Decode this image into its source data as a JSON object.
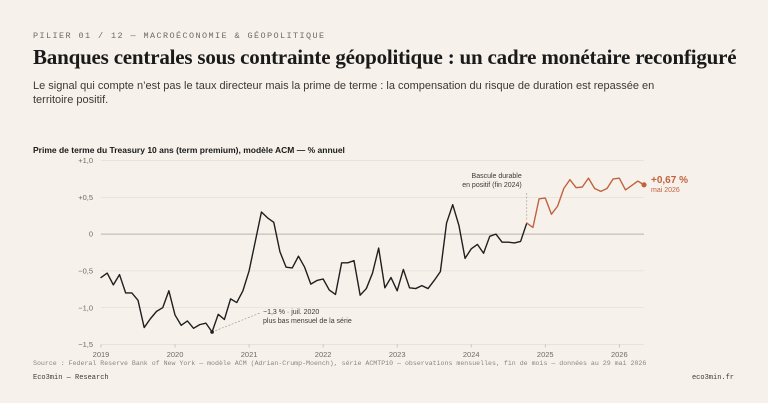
{
  "header": {
    "kicker": "PILIER 01 / 12 — MACROÉCONOMIE & GÉOPOLITIQUE",
    "title": "Banques centrales sous contrainte géopolitique : un cadre monétaire reconfiguré",
    "subtitle": "Le signal qui compte n’est pas le taux directeur mais la prime de terme : la compensation du risque de duration est repassée en territoire positif."
  },
  "footer": {
    "source": "Source : Federal Reserve Bank of New York — modèle ACM (Adrian-Crump-Moench), série ACMTP10 — observations mensuelles, fin de mois — données au 29 mai 2026",
    "brand": "Eco3min — Research",
    "site": "eco3min.fr"
  },
  "colors": {
    "background": "#f6f2eb",
    "historical_line": "#1f1f1f",
    "recent_line": "#c0623f",
    "grid": "#e3ddd3",
    "zero_line": "#b9b3a9"
  },
  "chart_data": {
    "type": "line",
    "title": "Prime de terme du Treasury 10 ans (term premium), modèle ACM — % annuel",
    "ylim": [
      -1.5,
      1.0
    ],
    "xlim": [
      "2019-01",
      "2026-05"
    ],
    "y_ticks": [
      1.0,
      0.5,
      0,
      -0.5,
      -1.0,
      -1.5
    ],
    "y_tick_labels": [
      "+1,0",
      "+0,5",
      "0",
      "−0,5",
      "−1,0",
      "−1,5"
    ],
    "x_tick_labels": [
      "2019",
      "2020",
      "2021",
      "2022",
      "2023",
      "2024",
      "2025",
      "2026"
    ],
    "grid": true,
    "split_date": "2024-10",
    "series": [
      {
        "segment": "historique",
        "color": "#1f1f1f",
        "points": [
          [
            "2019-01",
            -0.59
          ],
          [
            "2019-02",
            -0.53
          ],
          [
            "2019-03",
            -0.69
          ],
          [
            "2019-04",
            -0.55
          ],
          [
            "2019-05",
            -0.8
          ],
          [
            "2019-06",
            -0.8
          ],
          [
            "2019-07",
            -0.9
          ],
          [
            "2019-08",
            -1.27
          ],
          [
            "2019-09",
            -1.15
          ],
          [
            "2019-10",
            -1.05
          ],
          [
            "2019-11",
            -1.0
          ],
          [
            "2019-12",
            -0.77
          ],
          [
            "2020-01",
            -1.1
          ],
          [
            "2020-02",
            -1.24
          ],
          [
            "2020-03",
            -1.18
          ],
          [
            "2020-04",
            -1.28
          ],
          [
            "2020-05",
            -1.23
          ],
          [
            "2020-06",
            -1.21
          ],
          [
            "2020-07",
            -1.33
          ],
          [
            "2020-08",
            -1.09
          ],
          [
            "2020-09",
            -1.16
          ],
          [
            "2020-10",
            -0.88
          ],
          [
            "2020-11",
            -0.93
          ],
          [
            "2020-12",
            -0.77
          ],
          [
            "2021-01",
            -0.5
          ],
          [
            "2021-02",
            -0.1
          ],
          [
            "2021-03",
            0.3
          ],
          [
            "2021-04",
            0.22
          ],
          [
            "2021-05",
            0.16
          ],
          [
            "2021-06",
            -0.24
          ],
          [
            "2021-07",
            -0.45
          ],
          [
            "2021-08",
            -0.46
          ],
          [
            "2021-09",
            -0.3
          ],
          [
            "2021-10",
            -0.45
          ],
          [
            "2021-11",
            -0.68
          ],
          [
            "2021-12",
            -0.63
          ],
          [
            "2022-01",
            -0.61
          ],
          [
            "2022-02",
            -0.76
          ],
          [
            "2022-03",
            -0.82
          ],
          [
            "2022-04",
            -0.39
          ],
          [
            "2022-05",
            -0.39
          ],
          [
            "2022-06",
            -0.36
          ],
          [
            "2022-07",
            -0.83
          ],
          [
            "2022-08",
            -0.74
          ],
          [
            "2022-09",
            -0.53
          ],
          [
            "2022-10",
            -0.19
          ],
          [
            "2022-11",
            -0.73
          ],
          [
            "2022-12",
            -0.59
          ],
          [
            "2023-01",
            -0.77
          ],
          [
            "2023-02",
            -0.48
          ],
          [
            "2023-03",
            -0.73
          ],
          [
            "2023-04",
            -0.74
          ],
          [
            "2023-05",
            -0.7
          ],
          [
            "2023-06",
            -0.74
          ],
          [
            "2023-07",
            -0.63
          ],
          [
            "2023-08",
            -0.51
          ],
          [
            "2023-09",
            0.15
          ],
          [
            "2023-10",
            0.4
          ],
          [
            "2023-11",
            0.12
          ],
          [
            "2023-12",
            -0.33
          ],
          [
            "2024-01",
            -0.2
          ],
          [
            "2024-02",
            -0.14
          ],
          [
            "2024-03",
            -0.26
          ],
          [
            "2024-04",
            -0.03
          ],
          [
            "2024-05",
            0.0
          ],
          [
            "2024-06",
            -0.11
          ],
          [
            "2024-07",
            -0.11
          ],
          [
            "2024-08",
            -0.12
          ],
          [
            "2024-09",
            -0.1
          ],
          [
            "2024-10",
            0.15
          ]
        ]
      },
      {
        "segment": "récent",
        "color": "#c0623f",
        "points": [
          [
            "2024-10",
            0.15
          ],
          [
            "2024-11",
            0.09
          ],
          [
            "2024-12",
            0.48
          ],
          [
            "2025-01",
            0.49
          ],
          [
            "2025-02",
            0.27
          ],
          [
            "2025-03",
            0.38
          ],
          [
            "2025-04",
            0.62
          ],
          [
            "2025-05",
            0.74
          ],
          [
            "2025-06",
            0.63
          ],
          [
            "2025-07",
            0.64
          ],
          [
            "2025-08",
            0.76
          ],
          [
            "2025-09",
            0.62
          ],
          [
            "2025-10",
            0.58
          ],
          [
            "2025-11",
            0.62
          ],
          [
            "2025-12",
            0.75
          ],
          [
            "2026-01",
            0.76
          ],
          [
            "2026-02",
            0.6
          ],
          [
            "2026-03",
            0.66
          ],
          [
            "2026-04",
            0.72
          ],
          [
            "2026-05",
            0.67
          ]
        ]
      }
    ],
    "annotations": [
      {
        "text_lines": [
          "−1,3 % · juil. 2020",
          "plus bas mensuel de la série"
        ],
        "x": "2020-07",
        "y": -1.33
      },
      {
        "text_lines": [
          "Bascule durable",
          "en positif (fin 2024)"
        ],
        "x": "2024-10",
        "y": 0.15
      },
      {
        "value_label": "+0,67 %",
        "date_label": "mai 2026",
        "x": "2026-05",
        "y": 0.67
      }
    ]
  }
}
